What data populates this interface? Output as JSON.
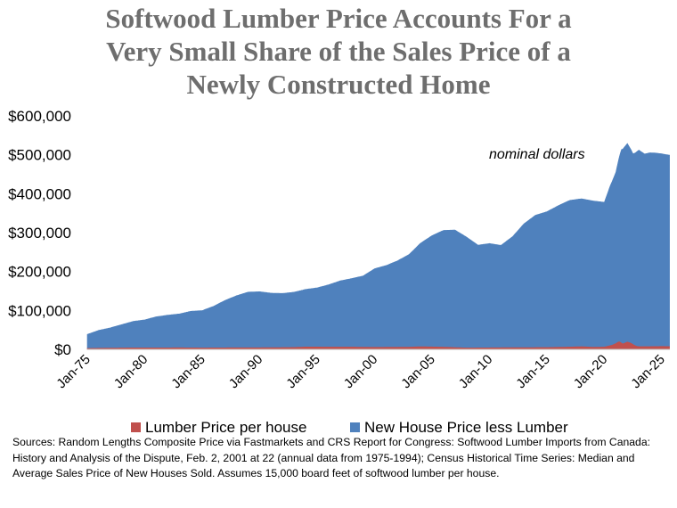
{
  "title_lines": [
    "Softwood Lumber Price Accounts For a",
    "Very Small Share of the Sales Price of a",
    "Newly Constructed Home"
  ],
  "source_note": "Sources:  Random Lengths Composite Price via Fastmarkets and CRS Report for Congress: Softwood Lumber Imports from Canada: History and Analysis of the Dispute, Feb. 2, 2001 at 22 (annual data from 1975-1994); Census Historical Time Series: Median and Average Sales Price of New Houses Sold.  Assumes 15,000 board feet of softwood lumber per house.",
  "chart_data": {
    "type": "area",
    "stacked": true,
    "annotation": "nominal dollars",
    "ylim": [
      0,
      600000
    ],
    "xlim": [
      1975,
      2025.7
    ],
    "y_ticks": [
      {
        "value": 0,
        "label": "$0"
      },
      {
        "value": 100000,
        "label": "$100,000"
      },
      {
        "value": 200000,
        "label": "$200,000"
      },
      {
        "value": 300000,
        "label": "$300,000"
      },
      {
        "value": 400000,
        "label": "$400,000"
      },
      {
        "value": 500000,
        "label": "$500,000"
      },
      {
        "value": 600000,
        "label": "$600,000"
      }
    ],
    "x_ticks": [
      {
        "value": 1975,
        "label": "Jan-75"
      },
      {
        "value": 1980,
        "label": "Jan-80"
      },
      {
        "value": 1985,
        "label": "Jan-85"
      },
      {
        "value": 1990,
        "label": "Jan-90"
      },
      {
        "value": 1995,
        "label": "Jan-95"
      },
      {
        "value": 2000,
        "label": "Jan-00"
      },
      {
        "value": 2005,
        "label": "Jan-05"
      },
      {
        "value": 2010,
        "label": "Jan-10"
      },
      {
        "value": 2015,
        "label": "Jan-15"
      },
      {
        "value": 2020,
        "label": "Jan-20"
      },
      {
        "value": 2025,
        "label": "Jan-25"
      }
    ],
    "series": [
      {
        "name": "Lumber Price per house",
        "color": "#c0504d",
        "x": [
          1975,
          1977,
          1979,
          1981,
          1983,
          1985,
          1987,
          1990,
          1993,
          1994,
          1996,
          1998,
          2000,
          2003,
          2004,
          2006,
          2008,
          2010,
          2012,
          2015,
          2017,
          2018,
          2019,
          2020,
          2020.7,
          2021,
          2021.3,
          2021.6,
          2022,
          2022.3,
          2022.7,
          2023,
          2024,
          2025,
          2025.6
        ],
        "values": [
          2500,
          3300,
          4000,
          3800,
          4100,
          3700,
          4000,
          4200,
          5000,
          6200,
          6000,
          6000,
          5200,
          5800,
          6800,
          5800,
          3600,
          4000,
          4500,
          4800,
          6000,
          7000,
          5500,
          6000,
          11000,
          15000,
          20000,
          14000,
          19000,
          16000,
          9000,
          7000,
          7200,
          7500,
          7300
        ]
      },
      {
        "name": "New House Price less Lumber",
        "color": "#4f81bd",
        "x": [
          1975,
          1976,
          1977,
          1978,
          1979,
          1980,
          1981,
          1982,
          1983,
          1984,
          1985,
          1986,
          1987,
          1988,
          1989,
          1990,
          1991,
          1992,
          1993,
          1994,
          1995,
          1996,
          1997,
          1998,
          1999,
          2000,
          2001,
          2002,
          2003,
          2004,
          2005,
          2006,
          2007,
          2008,
          2009,
          2010,
          2011,
          2012,
          2013,
          2014,
          2015,
          2016,
          2017,
          2018,
          2019,
          2020,
          2020.5,
          2021,
          2021.5,
          2022,
          2022.5,
          2023,
          2023.5,
          2024,
          2024.5,
          2025,
          2025.6
        ],
        "values": [
          36000,
          46000,
          52000,
          60000,
          68000,
          72000,
          80000,
          84000,
          87000,
          94000,
          96000,
          107000,
          122000,
          134000,
          143000,
          144000,
          140000,
          139000,
          142000,
          148000,
          152000,
          160000,
          170000,
          176000,
          183000,
          202000,
          210000,
          222000,
          238000,
          266000,
          286000,
          300000,
          302000,
          285000,
          264000,
          268000,
          263000,
          285000,
          318000,
          340000,
          349000,
          364000,
          377000,
          380000,
          376000,
          372000,
          410000,
          440000,
          498000,
          510000,
          490000,
          505000,
          495000,
          498000,
          497000,
          495000,
          492000
        ]
      }
    ]
  }
}
